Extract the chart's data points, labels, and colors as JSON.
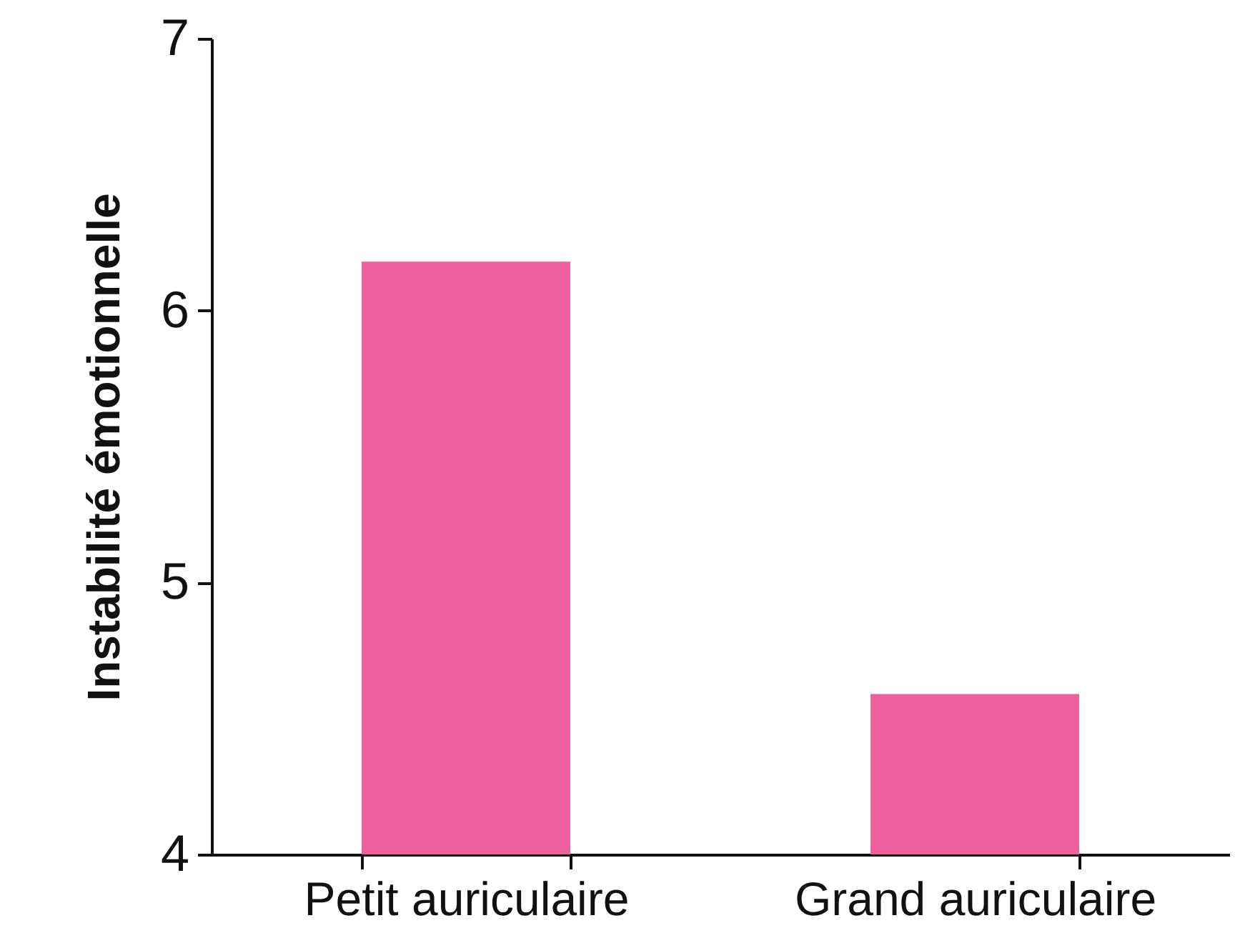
{
  "chart_data": {
    "type": "bar",
    "ylabel": "Instabilité émotionnelle",
    "categories": [
      "Petit auriculaire",
      "Grand auriculaire"
    ],
    "values": [
      6.18,
      4.59
    ],
    "color": "#ee5fa0",
    "ylim": [
      4,
      7
    ],
    "yticks": [
      4,
      5,
      6,
      7
    ],
    "grid": false
  }
}
